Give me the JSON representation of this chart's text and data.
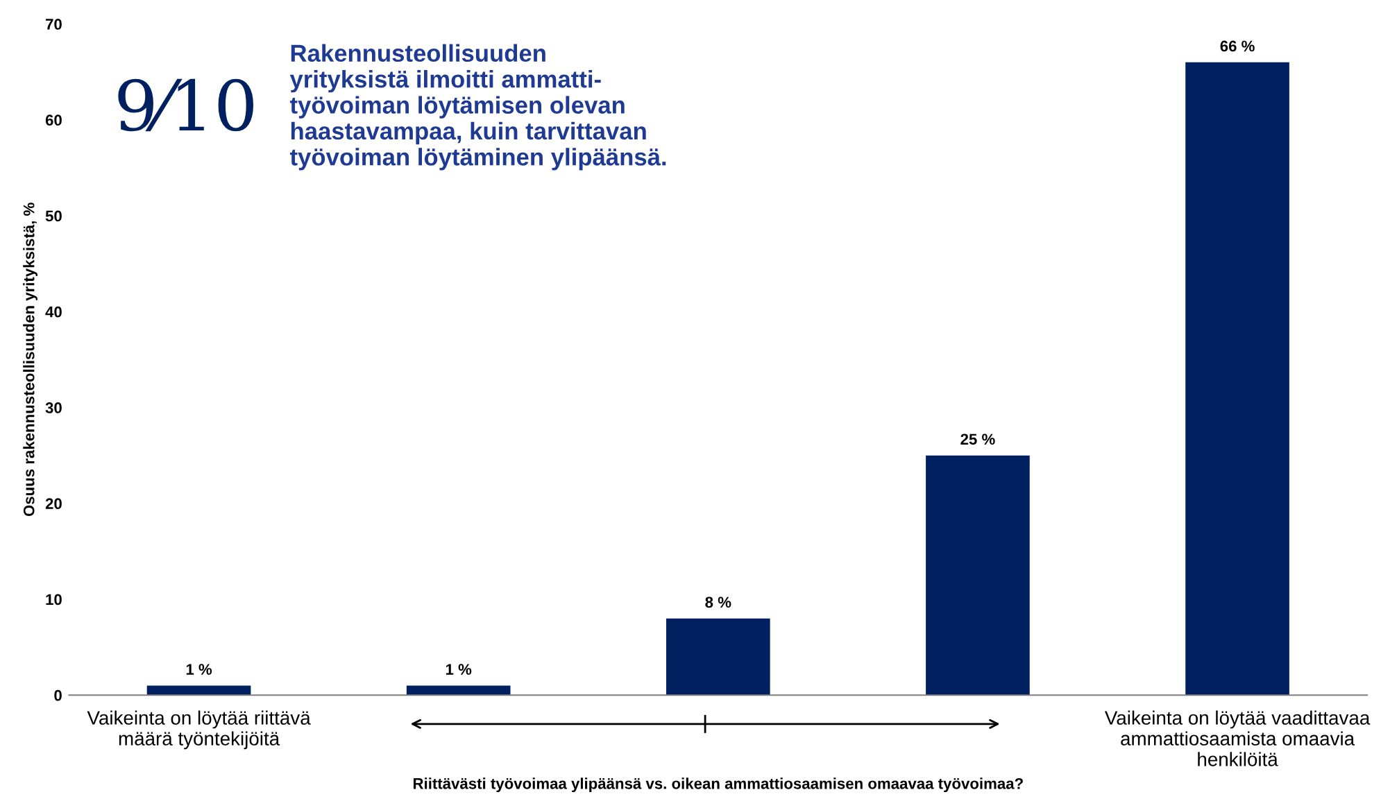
{
  "chart_data": {
    "type": "bar",
    "categories": [
      "Vaikeinta on löytää riittävä\nmäärä työntekijöitä",
      null,
      null,
      null,
      "Vaikeinta on löytää vaadittavaa\nammattiosaamista omaavia\nhenkilöitä"
    ],
    "values": [
      1,
      1,
      8,
      25,
      66
    ],
    "value_labels": [
      "1 %",
      "1 %",
      "8 %",
      "25 %",
      "66 %"
    ],
    "color": "#002060",
    "ylim": [
      0,
      70
    ],
    "yticks": [
      0,
      10,
      20,
      30,
      40,
      50,
      60,
      70
    ],
    "xlabel": "Riittävästi työvoimaa ylipäänsä vs. oikean ammattiosaamisen omaavaa työvoimaa?",
    "ylabel": "Osuus rakennusteollisuuden yrityksistä, %",
    "annotations": [
      "9⁄10",
      "Rakennusteollisuuden\nyrityksistä ilmoitti ammatti-\ntyövoiman löytämisen olevan\nhaastavampaa, kuin tarvittavan\ntyövoiman löytäminen ylipäänsä."
    ],
    "grid": false,
    "legend": false
  }
}
